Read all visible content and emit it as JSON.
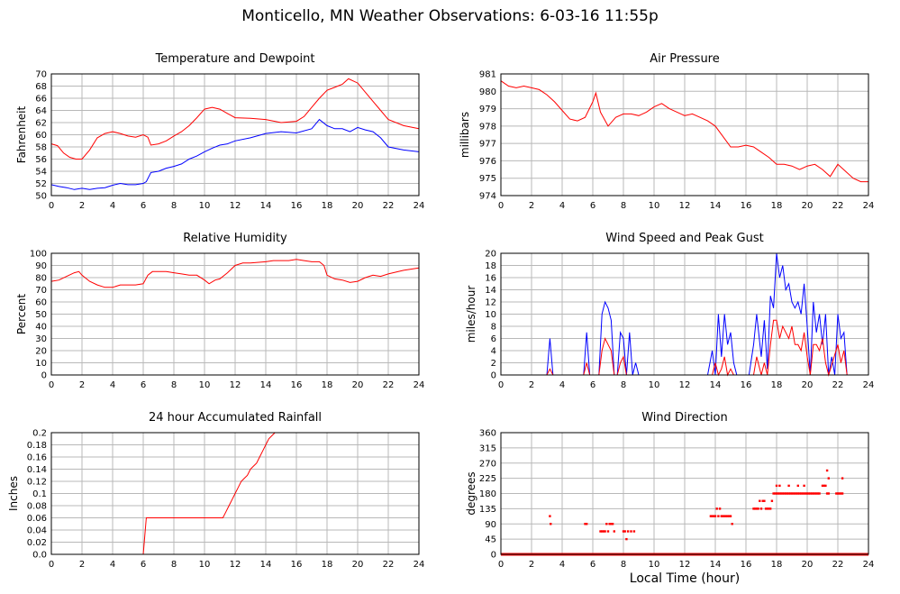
{
  "page": {
    "title": "Monticello, MN Weather Observations: 6-03-16 11:55p",
    "xlabel": "Local Time (hour)"
  },
  "colors": {
    "red": "#ff0000",
    "blue": "#0000ff",
    "grid": "#b8b8b8"
  },
  "chart_data": [
    {
      "id": "temp",
      "type": "line",
      "title": "Temperature and Dewpoint",
      "ylabel": "Fahrenheit",
      "xlim": [
        0,
        24
      ],
      "ylim": [
        50,
        70
      ],
      "xticks": [
        0,
        2,
        4,
        6,
        8,
        10,
        12,
        14,
        16,
        18,
        20,
        22,
        24
      ],
      "yticks": [
        50,
        52,
        54,
        56,
        58,
        60,
        62,
        64,
        66,
        68,
        70
      ],
      "series": [
        {
          "color": "#ff0000",
          "x": [
            0,
            0.4,
            0.8,
            1.2,
            1.6,
            2.0,
            2.5,
            3.0,
            3.5,
            4.0,
            4.5,
            5.0,
            5.5,
            6.0,
            6.3,
            6.5,
            7.0,
            7.5,
            8.0,
            8.5,
            9.0,
            9.5,
            10.0,
            10.5,
            11.0,
            11.5,
            12.0,
            13.0,
            14.0,
            15.0,
            16.0,
            16.5,
            17.0,
            17.5,
            18.0,
            18.5,
            19.0,
            19.4,
            20.0,
            20.5,
            21.0,
            21.5,
            22.0,
            23.0,
            24.0
          ],
          "y": [
            58.5,
            58.2,
            57.0,
            56.3,
            56.0,
            56.0,
            57.5,
            59.5,
            60.2,
            60.5,
            60.2,
            59.8,
            59.6,
            60.0,
            59.6,
            58.3,
            58.5,
            59.0,
            59.8,
            60.5,
            61.5,
            62.8,
            64.2,
            64.5,
            64.2,
            63.5,
            62.8,
            62.7,
            62.5,
            62.0,
            62.2,
            63.0,
            64.5,
            66.0,
            67.3,
            67.8,
            68.3,
            69.2,
            68.5,
            67.0,
            65.5,
            64.0,
            62.5,
            61.5,
            61.0
          ]
        },
        {
          "color": "#0000ff",
          "x": [
            0,
            0.5,
            1.0,
            1.5,
            2.0,
            2.5,
            3.0,
            3.5,
            4.0,
            4.5,
            5.0,
            5.5,
            6.0,
            6.2,
            6.5,
            7.0,
            7.5,
            8.0,
            8.5,
            9.0,
            9.5,
            10.0,
            10.5,
            11.0,
            11.5,
            12.0,
            13.0,
            14.0,
            15.0,
            16.0,
            17.0,
            17.5,
            18.0,
            18.5,
            19.0,
            19.5,
            20.0,
            20.5,
            21.0,
            21.5,
            22.0,
            23.0,
            24.0
          ],
          "y": [
            51.8,
            51.5,
            51.3,
            51.0,
            51.2,
            51.0,
            51.2,
            51.3,
            51.7,
            52.0,
            51.8,
            51.8,
            52.0,
            52.3,
            53.8,
            54.0,
            54.5,
            54.8,
            55.2,
            56.0,
            56.5,
            57.2,
            57.8,
            58.3,
            58.5,
            59.0,
            59.5,
            60.2,
            60.5,
            60.3,
            61.0,
            62.5,
            61.5,
            61.0,
            61.0,
            60.5,
            61.2,
            60.8,
            60.5,
            59.5,
            58.0,
            57.5,
            57.2
          ]
        }
      ]
    },
    {
      "id": "press",
      "type": "line",
      "title": "Air Pressure",
      "ylabel": "millibars",
      "xlim": [
        0,
        24
      ],
      "ylim": [
        974,
        981
      ],
      "xticks": [
        0,
        2,
        4,
        6,
        8,
        10,
        12,
        14,
        16,
        18,
        20,
        22,
        24
      ],
      "yticks": [
        974,
        975,
        976,
        977,
        978,
        979,
        980,
        981
      ],
      "series": [
        {
          "color": "#ff0000",
          "x": [
            0,
            0.5,
            1.0,
            1.5,
            2.0,
            2.5,
            3.0,
            3.5,
            4.0,
            4.5,
            5.0,
            5.5,
            6.0,
            6.2,
            6.5,
            7.0,
            7.5,
            8.0,
            8.5,
            9.0,
            9.5,
            10.0,
            10.5,
            11.0,
            11.5,
            12.0,
            12.5,
            13.0,
            13.5,
            14.0,
            14.5,
            15.0,
            15.5,
            16.0,
            16.5,
            17.0,
            17.5,
            18.0,
            18.5,
            19.0,
            19.5,
            20.0,
            20.5,
            21.0,
            21.5,
            22.0,
            22.5,
            23.0,
            23.5,
            24.0
          ],
          "y": [
            980.6,
            980.3,
            980.2,
            980.3,
            980.2,
            980.1,
            979.8,
            979.4,
            978.9,
            978.4,
            978.3,
            978.5,
            979.4,
            979.9,
            978.8,
            978.0,
            978.5,
            978.7,
            978.7,
            978.6,
            978.8,
            979.1,
            979.3,
            979.0,
            978.8,
            978.6,
            978.7,
            978.5,
            978.3,
            978.0,
            977.4,
            976.8,
            976.8,
            976.9,
            976.8,
            976.5,
            976.2,
            975.8,
            975.8,
            975.7,
            975.5,
            975.7,
            975.8,
            975.5,
            975.1,
            975.8,
            975.4,
            975.0,
            974.8,
            974.8
          ]
        }
      ]
    },
    {
      "id": "rh",
      "type": "line",
      "title": "Relative Humidity",
      "ylabel": "Percent",
      "xlim": [
        0,
        24
      ],
      "ylim": [
        0,
        100
      ],
      "xticks": [
        0,
        2,
        4,
        6,
        8,
        10,
        12,
        14,
        16,
        18,
        20,
        22,
        24
      ],
      "yticks": [
        0,
        10,
        20,
        30,
        40,
        50,
        60,
        70,
        80,
        90,
        100
      ],
      "series": [
        {
          "color": "#ff0000",
          "x": [
            0,
            0.5,
            1.0,
            1.5,
            1.8,
            2.0,
            2.5,
            3.0,
            3.5,
            4.0,
            4.5,
            5.0,
            5.5,
            6.0,
            6.3,
            6.6,
            7.0,
            7.5,
            8.0,
            8.5,
            9.0,
            9.5,
            10.0,
            10.3,
            10.7,
            11.0,
            11.5,
            12.0,
            12.5,
            13.0,
            14.0,
            14.5,
            15.0,
            15.5,
            16.0,
            16.5,
            17.0,
            17.5,
            17.8,
            18.0,
            18.5,
            19.0,
            19.5,
            20.0,
            20.5,
            21.0,
            21.5,
            22.0,
            23.0,
            24.0
          ],
          "y": [
            77,
            78,
            81,
            84,
            85,
            82,
            77,
            74,
            72,
            72,
            74,
            74,
            74,
            75,
            82,
            85,
            85,
            85,
            84,
            83,
            82,
            82,
            78,
            75,
            78,
            79,
            84,
            90,
            92,
            92,
            93,
            94,
            94,
            94,
            95,
            94,
            93,
            93,
            90,
            82,
            79,
            78,
            76,
            77,
            80,
            82,
            81,
            83,
            86,
            88
          ]
        }
      ]
    },
    {
      "id": "wind",
      "type": "line",
      "title": "Wind Speed and Peak Gust",
      "ylabel": "miles/hour",
      "xlim": [
        0,
        24
      ],
      "ylim": [
        0,
        20
      ],
      "xticks": [
        0,
        2,
        4,
        6,
        8,
        10,
        12,
        14,
        16,
        18,
        20,
        22,
        24
      ],
      "yticks": [
        0,
        2,
        4,
        6,
        8,
        10,
        12,
        14,
        16,
        18,
        20
      ],
      "series": [
        {
          "color": "#0000ff",
          "x": [
            0,
            3.0,
            3.2,
            3.4,
            5.4,
            5.6,
            5.8,
            6.4,
            6.6,
            6.8,
            7.0,
            7.2,
            7.4,
            7.6,
            7.8,
            8.0,
            8.2,
            8.4,
            8.6,
            8.8,
            9.0,
            9.2,
            9.4,
            13.5,
            13.8,
            14.0,
            14.2,
            14.4,
            14.6,
            14.8,
            15.0,
            15.2,
            15.4,
            16.2,
            16.5,
            16.7,
            17.0,
            17.2,
            17.4,
            17.6,
            17.8,
            18.0,
            18.2,
            18.4,
            18.6,
            18.8,
            19.0,
            19.2,
            19.4,
            19.6,
            19.8,
            20.0,
            20.2,
            20.4,
            20.6,
            20.8,
            21.0,
            21.2,
            21.4,
            21.6,
            21.8,
            22.0,
            22.2,
            22.4,
            22.6,
            24.0
          ],
          "y": [
            0,
            0,
            6,
            0,
            0,
            7,
            0,
            0,
            10,
            12,
            11,
            9,
            0,
            0,
            7,
            6,
            0,
            7,
            0,
            2,
            0,
            0,
            0,
            0,
            4,
            0,
            10,
            3,
            10,
            5,
            7,
            2,
            0,
            0,
            5,
            10,
            3,
            9,
            1,
            13,
            11,
            20,
            16,
            18,
            14,
            15,
            12,
            11,
            12,
            10,
            15,
            8,
            0,
            12,
            7,
            10,
            5,
            10,
            0,
            3,
            0,
            10,
            6,
            7,
            0,
            0
          ]
        },
        {
          "color": "#ff0000",
          "x": [
            0,
            3.0,
            3.2,
            3.4,
            5.4,
            5.6,
            5.8,
            6.4,
            6.6,
            6.8,
            7.0,
            7.2,
            7.4,
            7.6,
            7.8,
            8.0,
            8.2,
            8.4,
            13.5,
            13.8,
            14.0,
            14.2,
            14.4,
            14.6,
            14.8,
            15.0,
            15.2,
            16.2,
            16.5,
            16.7,
            17.0,
            17.2,
            17.4,
            17.6,
            17.8,
            18.0,
            18.2,
            18.4,
            18.6,
            18.8,
            19.0,
            19.2,
            19.4,
            19.6,
            19.8,
            20.0,
            20.2,
            20.4,
            20.6,
            20.8,
            21.0,
            21.2,
            21.4,
            22.0,
            22.2,
            22.4,
            22.6,
            24.0
          ],
          "y": [
            0,
            0,
            1,
            0,
            0,
            2,
            0,
            0,
            4,
            6,
            5,
            4,
            0,
            0,
            2,
            3,
            0,
            0,
            0,
            0,
            2,
            0,
            1,
            3,
            0,
            1,
            0,
            0,
            0,
            3,
            0,
            2,
            0,
            5,
            9,
            9,
            6,
            8,
            7,
            6,
            8,
            5,
            5,
            4,
            7,
            3,
            0,
            5,
            5,
            4,
            6,
            2,
            0,
            5,
            2,
            4,
            0,
            0
          ]
        }
      ]
    },
    {
      "id": "rain",
      "type": "line",
      "title": "24 hour Accumulated Rainfall",
      "ylabel": "Inches",
      "xlim": [
        0,
        24
      ],
      "ylim": [
        0,
        0.2
      ],
      "xticks": [
        0,
        2,
        4,
        6,
        8,
        10,
        12,
        14,
        16,
        18,
        20,
        22,
        24
      ],
      "yticks": [
        0.0,
        0.02,
        0.04,
        0.06,
        0.08,
        0.1,
        0.12,
        0.14,
        0.16,
        0.18,
        0.2
      ],
      "ytick_labels": [
        "0.0",
        "0.02",
        "0.04",
        "0.06",
        "0.08",
        "0.1",
        "0.12",
        "0.14",
        "0.16",
        "0.18",
        "0.2"
      ],
      "series": [
        {
          "color": "#ff0000",
          "x": [
            0,
            6.0,
            6.2,
            11.2,
            11.4,
            11.6,
            11.8,
            12.0,
            12.2,
            12.4,
            12.6,
            12.8,
            13.0,
            13.2,
            13.4,
            13.6,
            13.8,
            14.0,
            14.2,
            14.4,
            14.6,
            14.8
          ],
          "y": [
            0,
            0,
            0.06,
            0.06,
            0.07,
            0.08,
            0.09,
            0.1,
            0.11,
            0.12,
            0.125,
            0.13,
            0.14,
            0.145,
            0.15,
            0.16,
            0.17,
            0.18,
            0.19,
            0.195,
            0.2,
            0.2
          ]
        }
      ]
    },
    {
      "id": "dir",
      "type": "scatter",
      "title": "Wind Direction",
      "ylabel": "degrees",
      "xlim": [
        0,
        24
      ],
      "ylim": [
        0,
        360
      ],
      "xticks": [
        0,
        2,
        4,
        6,
        8,
        10,
        12,
        14,
        16,
        18,
        20,
        22,
        24
      ],
      "yticks": [
        0,
        45,
        90,
        135,
        180,
        225,
        270,
        315,
        360
      ],
      "series": [
        {
          "color": "#ff0000",
          "x": [
            3.2,
            3.25,
            5.5,
            5.6,
            6.5,
            6.6,
            6.7,
            6.8,
            6.9,
            7.0,
            7.1,
            7.2,
            7.3,
            7.4,
            8.0,
            8.1,
            8.2,
            8.3,
            8.5,
            8.7,
            13.7,
            13.8,
            13.9,
            14.0,
            14.1,
            14.2,
            14.3,
            14.4,
            14.5,
            14.6,
            14.7,
            14.8,
            14.9,
            15.0,
            15.1,
            16.5,
            16.6,
            16.7,
            16.8,
            16.9,
            17.0,
            17.1,
            17.2,
            17.3,
            17.4,
            17.5,
            17.6,
            17.7,
            17.8,
            17.9,
            18.0,
            18.1,
            18.2,
            18.3,
            18.4,
            18.5,
            18.6,
            18.7,
            18.8,
            18.9,
            19.0,
            19.1,
            19.2,
            19.3,
            19.4,
            19.5,
            19.6,
            19.7,
            19.8,
            19.9,
            20.0,
            20.1,
            20.2,
            20.3,
            20.4,
            20.5,
            20.6,
            20.7,
            20.8,
            21.0,
            21.1,
            21.2,
            21.3,
            21.4,
            21.9,
            22.0,
            22.1,
            22.2,
            22.3,
            18.0,
            18.2,
            18.8,
            19.4,
            19.8,
            21.3,
            21.4,
            22.3
          ],
          "y": [
            113,
            90,
            90,
            90,
            68,
            68,
            68,
            68,
            90,
            68,
            90,
            90,
            90,
            68,
            68,
            68,
            45,
            68,
            68,
            68,
            113,
            113,
            113,
            113,
            135,
            113,
            135,
            113,
            113,
            113,
            113,
            113,
            113,
            113,
            90,
            135,
            135,
            135,
            135,
            158,
            135,
            158,
            158,
            135,
            135,
            135,
            135,
            158,
            180,
            180,
            180,
            180,
            180,
            180,
            180,
            180,
            180,
            180,
            180,
            180,
            180,
            180,
            180,
            180,
            180,
            180,
            180,
            180,
            180,
            180,
            180,
            180,
            180,
            180,
            180,
            180,
            180,
            180,
            180,
            203,
            203,
            203,
            180,
            180,
            180,
            180,
            180,
            180,
            180,
            203,
            203,
            203,
            203,
            203,
            248,
            225,
            225
          ],
          "baseline_value": 0
        }
      ]
    }
  ]
}
